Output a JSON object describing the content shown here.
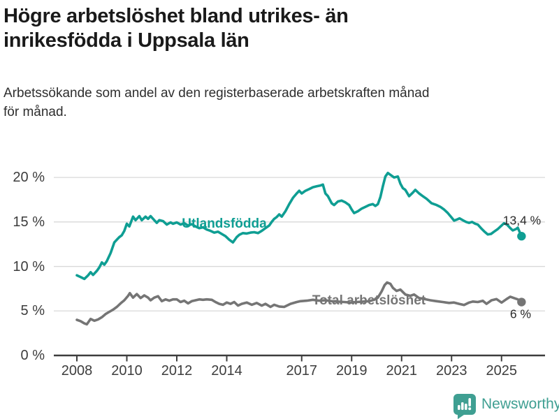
{
  "header": {
    "title": "Högre arbetslöshet bland utrikes- än\ninrikesfödda i Uppsala län",
    "subtitle": "Arbetssökande som andel av den registerbaserade arbetskraften månad\nför månad."
  },
  "footer": {
    "brand": "Newsworthy",
    "logo_icon": "bar-chart-speech-bubble-icon",
    "brand_color": "#3f9f92"
  },
  "colors": {
    "accent_teal": "#0f9e93",
    "series_gray": "#757575",
    "grid": "#d8d8d8",
    "axis": "#3d3d3d",
    "annotation": "#2b2b2b"
  },
  "chart_data": {
    "type": "line",
    "title": "Högre arbetslöshet bland utrikes- än inrikesfödda i Uppsala län",
    "xlabel": "",
    "ylabel": "",
    "grid": true,
    "legend_position": "inline-labels",
    "xlim": [
      2007.6,
      2026.7
    ],
    "ylim": [
      0,
      21.5
    ],
    "y_ticks": [
      {
        "value": 0,
        "label": "0 %"
      },
      {
        "value": 5,
        "label": "5 %"
      },
      {
        "value": 10,
        "label": "10 %"
      },
      {
        "value": 15,
        "label": "15 %"
      },
      {
        "value": 20,
        "label": "20 %"
      }
    ],
    "x_ticks": [
      {
        "value": 2008,
        "label": "2008"
      },
      {
        "value": 2010,
        "label": "2010"
      },
      {
        "value": 2012,
        "label": "2012"
      },
      {
        "value": 2014,
        "label": "2014"
      },
      {
        "value": 2017,
        "label": "2017"
      },
      {
        "value": 2019,
        "label": "2019"
      },
      {
        "value": 2021,
        "label": "2021"
      },
      {
        "value": 2023,
        "label": "2023"
      },
      {
        "value": 2025,
        "label": "2025"
      }
    ],
    "series": [
      {
        "name": "Utlandsfödda",
        "color": "#0f9e93",
        "end_value": 13.4,
        "end_label": "13,4 %",
        "points": [
          [
            2008.0,
            9.0
          ],
          [
            2008.15,
            8.8
          ],
          [
            2008.3,
            8.6
          ],
          [
            2008.45,
            9.0
          ],
          [
            2008.55,
            9.35
          ],
          [
            2008.65,
            9.05
          ],
          [
            2008.8,
            9.5
          ],
          [
            2008.9,
            9.9
          ],
          [
            2009.0,
            10.45
          ],
          [
            2009.1,
            10.2
          ],
          [
            2009.2,
            10.6
          ],
          [
            2009.35,
            11.5
          ],
          [
            2009.5,
            12.7
          ],
          [
            2009.6,
            13.0
          ],
          [
            2009.7,
            13.3
          ],
          [
            2009.8,
            13.5
          ],
          [
            2009.9,
            14.0
          ],
          [
            2010.0,
            14.8
          ],
          [
            2010.1,
            14.5
          ],
          [
            2010.25,
            15.6
          ],
          [
            2010.35,
            15.2
          ],
          [
            2010.5,
            15.65
          ],
          [
            2010.6,
            15.2
          ],
          [
            2010.75,
            15.6
          ],
          [
            2010.85,
            15.35
          ],
          [
            2010.95,
            15.65
          ],
          [
            2011.1,
            15.2
          ],
          [
            2011.2,
            14.9
          ],
          [
            2011.3,
            15.2
          ],
          [
            2011.45,
            15.1
          ],
          [
            2011.6,
            14.7
          ],
          [
            2011.75,
            14.95
          ],
          [
            2011.85,
            14.8
          ],
          [
            2012.0,
            14.95
          ],
          [
            2012.15,
            14.7
          ],
          [
            2012.3,
            14.85
          ],
          [
            2012.45,
            14.6
          ],
          [
            2012.6,
            14.75
          ],
          [
            2012.75,
            14.5
          ],
          [
            2012.9,
            14.3
          ],
          [
            2013.05,
            14.4
          ],
          [
            2013.2,
            14.15
          ],
          [
            2013.35,
            14.0
          ],
          [
            2013.5,
            13.8
          ],
          [
            2013.65,
            13.9
          ],
          [
            2013.8,
            13.65
          ],
          [
            2013.95,
            13.4
          ],
          [
            2014.1,
            13.0
          ],
          [
            2014.25,
            12.7
          ],
          [
            2014.4,
            13.3
          ],
          [
            2014.5,
            13.55
          ],
          [
            2014.65,
            13.75
          ],
          [
            2014.8,
            13.7
          ],
          [
            2014.95,
            13.8
          ],
          [
            2015.1,
            13.85
          ],
          [
            2015.25,
            13.75
          ],
          [
            2015.4,
            14.0
          ],
          [
            2015.55,
            14.3
          ],
          [
            2015.7,
            14.6
          ],
          [
            2015.8,
            15.0
          ],
          [
            2015.9,
            15.35
          ],
          [
            2016.0,
            15.55
          ],
          [
            2016.1,
            15.85
          ],
          [
            2016.2,
            15.6
          ],
          [
            2016.35,
            16.2
          ],
          [
            2016.5,
            17.0
          ],
          [
            2016.65,
            17.7
          ],
          [
            2016.8,
            18.2
          ],
          [
            2016.9,
            18.5
          ],
          [
            2017.0,
            18.2
          ],
          [
            2017.15,
            18.5
          ],
          [
            2017.3,
            18.7
          ],
          [
            2017.45,
            18.9
          ],
          [
            2017.6,
            19.0
          ],
          [
            2017.75,
            19.1
          ],
          [
            2017.85,
            19.2
          ],
          [
            2017.95,
            18.2
          ],
          [
            2018.05,
            17.9
          ],
          [
            2018.2,
            17.1
          ],
          [
            2018.3,
            16.9
          ],
          [
            2018.45,
            17.3
          ],
          [
            2018.6,
            17.4
          ],
          [
            2018.75,
            17.2
          ],
          [
            2018.9,
            16.9
          ],
          [
            2019.0,
            16.4
          ],
          [
            2019.1,
            16.0
          ],
          [
            2019.25,
            16.2
          ],
          [
            2019.4,
            16.5
          ],
          [
            2019.55,
            16.7
          ],
          [
            2019.7,
            16.9
          ],
          [
            2019.85,
            17.0
          ],
          [
            2019.95,
            16.8
          ],
          [
            2020.05,
            17.0
          ],
          [
            2020.15,
            17.8
          ],
          [
            2020.25,
            19.0
          ],
          [
            2020.35,
            20.1
          ],
          [
            2020.45,
            20.5
          ],
          [
            2020.55,
            20.3
          ],
          [
            2020.7,
            20.0
          ],
          [
            2020.85,
            20.1
          ],
          [
            2020.95,
            19.3
          ],
          [
            2021.05,
            18.8
          ],
          [
            2021.15,
            18.6
          ],
          [
            2021.3,
            17.9
          ],
          [
            2021.45,
            18.3
          ],
          [
            2021.55,
            18.6
          ],
          [
            2021.7,
            18.2
          ],
          [
            2021.85,
            17.9
          ],
          [
            2022.0,
            17.6
          ],
          [
            2022.2,
            17.1
          ],
          [
            2022.4,
            16.9
          ],
          [
            2022.55,
            16.7
          ],
          [
            2022.7,
            16.4
          ],
          [
            2022.85,
            16.0
          ],
          [
            2023.0,
            15.5
          ],
          [
            2023.1,
            15.15
          ],
          [
            2023.2,
            15.25
          ],
          [
            2023.32,
            15.4
          ],
          [
            2023.45,
            15.2
          ],
          [
            2023.58,
            15.0
          ],
          [
            2023.7,
            14.9
          ],
          [
            2023.82,
            15.0
          ],
          [
            2023.95,
            14.8
          ],
          [
            2024.05,
            14.7
          ],
          [
            2024.18,
            14.3
          ],
          [
            2024.32,
            13.9
          ],
          [
            2024.45,
            13.6
          ],
          [
            2024.58,
            13.65
          ],
          [
            2024.7,
            13.9
          ],
          [
            2024.85,
            14.2
          ],
          [
            2025.0,
            14.6
          ],
          [
            2025.1,
            14.85
          ],
          [
            2025.22,
            14.7
          ],
          [
            2025.35,
            14.3
          ],
          [
            2025.45,
            14.05
          ],
          [
            2025.58,
            14.2
          ],
          [
            2025.65,
            14.35
          ],
          [
            2025.72,
            13.9
          ],
          [
            2025.8,
            13.4
          ]
        ]
      },
      {
        "name": "Total arbetslöshet",
        "color": "#757575",
        "end_value": 6.0,
        "end_label": "6 %",
        "points": [
          [
            2008.0,
            4.0
          ],
          [
            2008.15,
            3.85
          ],
          [
            2008.3,
            3.6
          ],
          [
            2008.4,
            3.5
          ],
          [
            2008.55,
            4.1
          ],
          [
            2008.7,
            3.9
          ],
          [
            2008.85,
            4.05
          ],
          [
            2009.0,
            4.3
          ],
          [
            2009.15,
            4.65
          ],
          [
            2009.3,
            4.9
          ],
          [
            2009.45,
            5.15
          ],
          [
            2009.6,
            5.45
          ],
          [
            2009.75,
            5.85
          ],
          [
            2009.9,
            6.2
          ],
          [
            2010.05,
            6.7
          ],
          [
            2010.12,
            7.0
          ],
          [
            2010.25,
            6.5
          ],
          [
            2010.4,
            6.9
          ],
          [
            2010.55,
            6.45
          ],
          [
            2010.7,
            6.75
          ],
          [
            2010.85,
            6.5
          ],
          [
            2010.95,
            6.2
          ],
          [
            2011.1,
            6.5
          ],
          [
            2011.25,
            6.65
          ],
          [
            2011.4,
            6.1
          ],
          [
            2011.55,
            6.3
          ],
          [
            2011.7,
            6.15
          ],
          [
            2011.85,
            6.3
          ],
          [
            2012.0,
            6.3
          ],
          [
            2012.15,
            6.0
          ],
          [
            2012.3,
            6.15
          ],
          [
            2012.45,
            5.85
          ],
          [
            2012.6,
            6.1
          ],
          [
            2012.75,
            6.2
          ],
          [
            2012.9,
            6.3
          ],
          [
            2013.05,
            6.25
          ],
          [
            2013.2,
            6.3
          ],
          [
            2013.4,
            6.25
          ],
          [
            2013.55,
            6.0
          ],
          [
            2013.7,
            5.8
          ],
          [
            2013.85,
            5.7
          ],
          [
            2014.0,
            5.95
          ],
          [
            2014.15,
            5.8
          ],
          [
            2014.3,
            6.0
          ],
          [
            2014.45,
            5.6
          ],
          [
            2014.6,
            5.8
          ],
          [
            2014.8,
            5.95
          ],
          [
            2015.0,
            5.7
          ],
          [
            2015.2,
            5.9
          ],
          [
            2015.4,
            5.6
          ],
          [
            2015.55,
            5.8
          ],
          [
            2015.75,
            5.45
          ],
          [
            2015.9,
            5.7
          ],
          [
            2016.1,
            5.5
          ],
          [
            2016.3,
            5.45
          ],
          [
            2016.55,
            5.8
          ],
          [
            2016.8,
            6.0
          ],
          [
            2016.95,
            6.1
          ],
          [
            2017.2,
            6.15
          ],
          [
            2017.45,
            6.25
          ],
          [
            2017.7,
            6.15
          ],
          [
            2017.95,
            6.2
          ],
          [
            2018.2,
            6.1
          ],
          [
            2018.45,
            6.05
          ],
          [
            2018.7,
            6.0
          ],
          [
            2018.95,
            5.95
          ],
          [
            2019.2,
            6.0
          ],
          [
            2019.45,
            6.05
          ],
          [
            2019.7,
            6.1
          ],
          [
            2019.9,
            6.25
          ],
          [
            2020.05,
            6.5
          ],
          [
            2020.2,
            7.2
          ],
          [
            2020.32,
            7.9
          ],
          [
            2020.42,
            8.2
          ],
          [
            2020.55,
            8.05
          ],
          [
            2020.65,
            7.6
          ],
          [
            2020.8,
            7.25
          ],
          [
            2020.95,
            7.4
          ],
          [
            2021.15,
            6.85
          ],
          [
            2021.35,
            6.7
          ],
          [
            2021.5,
            6.85
          ],
          [
            2021.7,
            6.45
          ],
          [
            2021.9,
            6.35
          ],
          [
            2022.15,
            6.2
          ],
          [
            2022.4,
            6.1
          ],
          [
            2022.65,
            6.0
          ],
          [
            2022.9,
            5.9
          ],
          [
            2023.1,
            5.95
          ],
          [
            2023.3,
            5.8
          ],
          [
            2023.5,
            5.67
          ],
          [
            2023.7,
            5.94
          ],
          [
            2023.85,
            6.06
          ],
          [
            2024.05,
            6.0
          ],
          [
            2024.25,
            6.14
          ],
          [
            2024.4,
            5.8
          ],
          [
            2024.6,
            6.2
          ],
          [
            2024.8,
            6.33
          ],
          [
            2025.0,
            5.94
          ],
          [
            2025.2,
            6.33
          ],
          [
            2025.35,
            6.6
          ],
          [
            2025.5,
            6.45
          ],
          [
            2025.65,
            6.3
          ],
          [
            2025.8,
            6.0
          ]
        ]
      }
    ]
  }
}
